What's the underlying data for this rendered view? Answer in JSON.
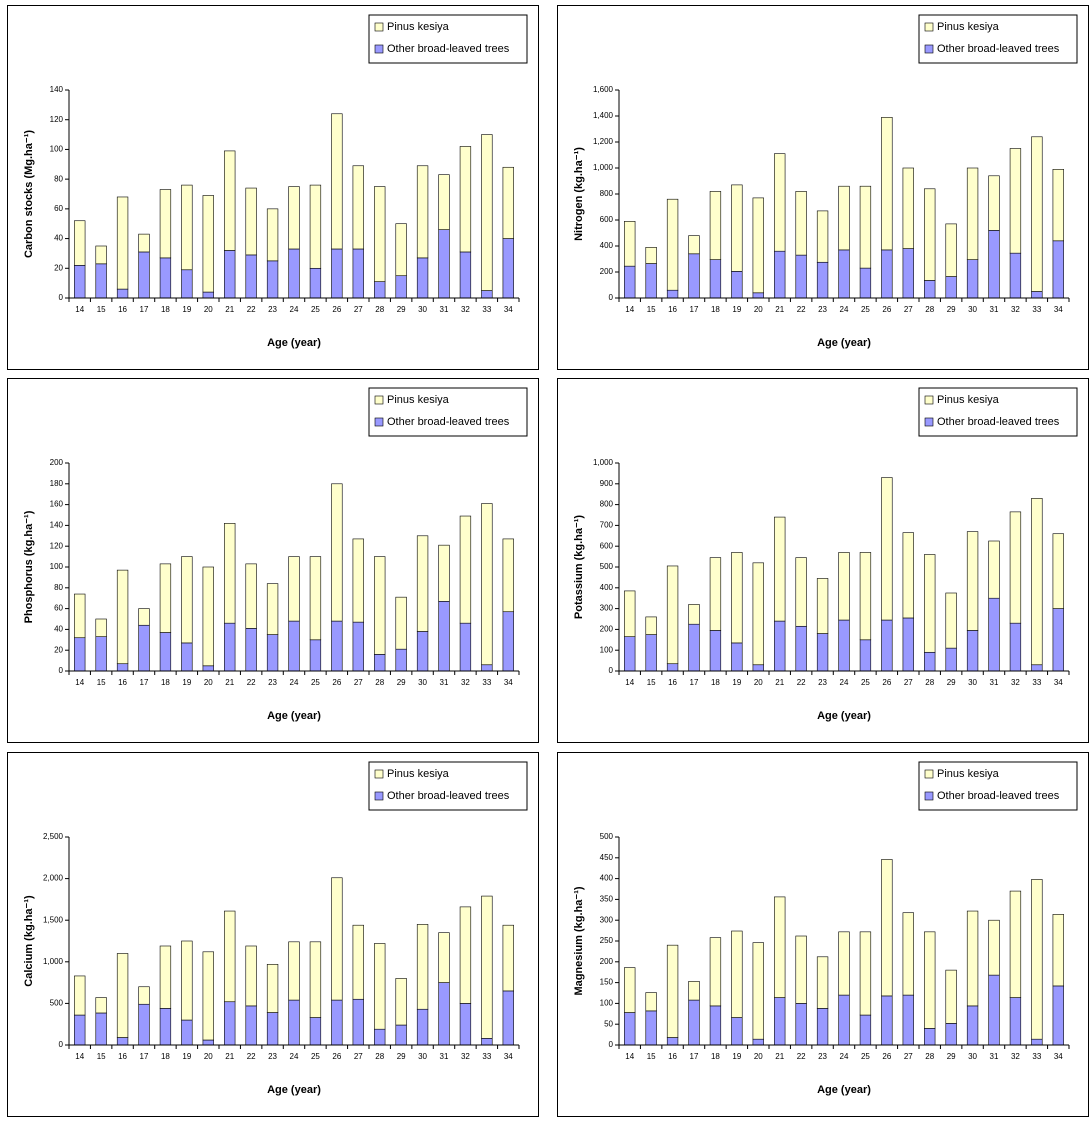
{
  "chart_data": [
    {
      "type": "bar",
      "stacked": true,
      "legend": "upper right",
      "y_label": "Carbon stocks (Mg.ha⁻¹)",
      "x_label": "Age (year)",
      "categories": [
        "14",
        "15",
        "16",
        "17",
        "18",
        "19",
        "20",
        "21",
        "22",
        "23",
        "24",
        "25",
        "26",
        "27",
        "28",
        "29",
        "30",
        "31",
        "32",
        "33",
        "34"
      ],
      "series": [
        {
          "name": "Pinus kesiya",
          "color": "#ffffcc",
          "values": [
            30,
            12,
            62,
            12,
            46,
            57,
            65,
            67,
            45,
            35,
            42,
            56,
            91,
            56,
            64,
            35,
            62,
            37,
            71,
            105,
            48
          ]
        },
        {
          "name": "Other broad-leaved trees",
          "color": "#9999ff",
          "values": [
            22,
            23,
            6,
            31,
            27,
            19,
            4,
            32,
            29,
            25,
            33,
            20,
            33,
            33,
            11,
            15,
            27,
            46,
            31,
            5,
            40
          ]
        }
      ],
      "ylim": [
        0,
        140
      ],
      "yticks": [
        0,
        20,
        40,
        60,
        80,
        100,
        120,
        140
      ]
    },
    {
      "type": "bar",
      "stacked": true,
      "legend": "upper right",
      "y_label": "Nitrogen (kg.ha⁻¹)",
      "x_label": "Age (year)",
      "categories": [
        "14",
        "15",
        "16",
        "17",
        "18",
        "19",
        "20",
        "21",
        "22",
        "23",
        "24",
        "25",
        "26",
        "27",
        "28",
        "29",
        "30",
        "31",
        "32",
        "33",
        "34"
      ],
      "series": [
        {
          "name": "Pinus kesiya",
          "color": "#ffffcc",
          "values": [
            345,
            125,
            700,
            140,
            525,
            665,
            730,
            750,
            490,
            395,
            490,
            630,
            1020,
            620,
            705,
            405,
            705,
            420,
            805,
            1190,
            550
          ]
        },
        {
          "name": "Other broad-leaved trees",
          "color": "#9999ff",
          "values": [
            245,
            265,
            60,
            340,
            295,
            205,
            40,
            360,
            330,
            275,
            370,
            230,
            370,
            380,
            135,
            165,
            295,
            520,
            345,
            50,
            440
          ]
        }
      ],
      "ylim": [
        0,
        1600
      ],
      "yticks": [
        0,
        200,
        400,
        600,
        800,
        {
          "value": 1000,
          "label": "1,000"
        },
        {
          "value": 1200,
          "label": "1,200"
        },
        {
          "value": 1400,
          "label": "1,400"
        },
        {
          "value": 1600,
          "label": "1,600"
        }
      ]
    },
    {
      "type": "bar",
      "stacked": true,
      "legend": "upper right",
      "y_label": "Phosphorus (kg.ha⁻¹)",
      "x_label": "Age (year)",
      "categories": [
        "14",
        "15",
        "16",
        "17",
        "18",
        "19",
        "20",
        "21",
        "22",
        "23",
        "24",
        "25",
        "26",
        "27",
        "28",
        "29",
        "30",
        "31",
        "32",
        "33",
        "34"
      ],
      "series": [
        {
          "name": "Pinus kesiya",
          "color": "#ffffcc",
          "values": [
            42,
            17,
            90,
            16,
            66,
            83,
            95,
            96,
            62,
            49,
            62,
            80,
            132,
            80,
            94,
            50,
            92,
            54,
            103,
            155,
            70
          ]
        },
        {
          "name": "Other broad-leaved trees",
          "color": "#9999ff",
          "values": [
            32,
            33,
            7,
            44,
            37,
            27,
            5,
            46,
            41,
            35,
            48,
            30,
            48,
            47,
            16,
            21,
            38,
            67,
            46,
            6,
            57
          ]
        }
      ],
      "ylim": [
        0,
        200
      ],
      "yticks": [
        0,
        20,
        40,
        60,
        80,
        100,
        120,
        140,
        160,
        180,
        200
      ]
    },
    {
      "type": "bar",
      "stacked": true,
      "legend": "upper right",
      "y_label": "Potassium (kg.ha⁻¹)",
      "x_label": "Age (year)",
      "categories": [
        "14",
        "15",
        "16",
        "17",
        "18",
        "19",
        "20",
        "21",
        "22",
        "23",
        "24",
        "25",
        "26",
        "27",
        "28",
        "29",
        "30",
        "31",
        "32",
        "33",
        "34"
      ],
      "series": [
        {
          "name": "Pinus kesiya",
          "color": "#ffffcc",
          "values": [
            220,
            85,
            470,
            95,
            350,
            435,
            490,
            500,
            330,
            265,
            325,
            420,
            685,
            410,
            470,
            265,
            475,
            275,
            535,
            800,
            360
          ]
        },
        {
          "name": "Other broad-leaved trees",
          "color": "#9999ff",
          "values": [
            165,
            175,
            35,
            225,
            195,
            135,
            30,
            240,
            215,
            180,
            245,
            150,
            245,
            255,
            90,
            110,
            195,
            350,
            230,
            30,
            300
          ]
        }
      ],
      "ylim": [
        0,
        1000
      ],
      "yticks": [
        0,
        100,
        200,
        300,
        400,
        500,
        600,
        700,
        800,
        900,
        {
          "value": 1000,
          "label": "1,000"
        }
      ]
    },
    {
      "type": "bar",
      "stacked": true,
      "legend": "upper right",
      "y_label": "Calcium (kg.ha⁻¹)",
      "x_label": "Age (year)",
      "categories": [
        "14",
        "15",
        "16",
        "17",
        "18",
        "19",
        "20",
        "21",
        "22",
        "23",
        "24",
        "25",
        "26",
        "27",
        "28",
        "29",
        "30",
        "31",
        "32",
        "33",
        "34"
      ],
      "series": [
        {
          "name": "Pinus kesiya",
          "color": "#ffffcc",
          "values": [
            470,
            185,
            1010,
            210,
            750,
            950,
            1060,
            1090,
            720,
            580,
            700,
            910,
            1470,
            890,
            1030,
            560,
            1020,
            600,
            1160,
            1710,
            790
          ]
        },
        {
          "name": "Other broad-leaved trees",
          "color": "#9999ff",
          "values": [
            360,
            385,
            90,
            490,
            440,
            300,
            60,
            520,
            470,
            390,
            540,
            330,
            540,
            550,
            190,
            240,
            430,
            750,
            500,
            80,
            650
          ]
        }
      ],
      "ylim": [
        0,
        2500
      ],
      "yticks": [
        0,
        500,
        {
          "value": 1000,
          "label": "1,000"
        },
        {
          "value": 1500,
          "label": "1,500"
        },
        {
          "value": 2000,
          "label": "2,000"
        },
        {
          "value": 2500,
          "label": "2,500"
        }
      ]
    },
    {
      "type": "bar",
      "stacked": true,
      "legend": "upper right",
      "y_label": "Magnesium (kg.ha⁻¹)",
      "x_label": "Age (year)",
      "categories": [
        "14",
        "15",
        "16",
        "17",
        "18",
        "19",
        "20",
        "21",
        "22",
        "23",
        "24",
        "25",
        "26",
        "27",
        "28",
        "29",
        "30",
        "31",
        "32",
        "33",
        "34"
      ],
      "series": [
        {
          "name": "Pinus kesiya",
          "color": "#ffffcc",
          "values": [
            108,
            44,
            222,
            45,
            164,
            208,
            232,
            242,
            162,
            124,
            152,
            200,
            328,
            198,
            232,
            128,
            228,
            132,
            256,
            384,
            172
          ]
        },
        {
          "name": "Other broad-leaved trees",
          "color": "#9999ff",
          "values": [
            78,
            82,
            18,
            108,
            94,
            66,
            14,
            114,
            100,
            88,
            120,
            72,
            118,
            120,
            40,
            52,
            94,
            168,
            114,
            14,
            142
          ]
        }
      ],
      "ylim": [
        0,
        500
      ],
      "yticks": [
        0,
        50,
        100,
        150,
        200,
        250,
        300,
        350,
        400,
        450,
        500
      ]
    }
  ]
}
